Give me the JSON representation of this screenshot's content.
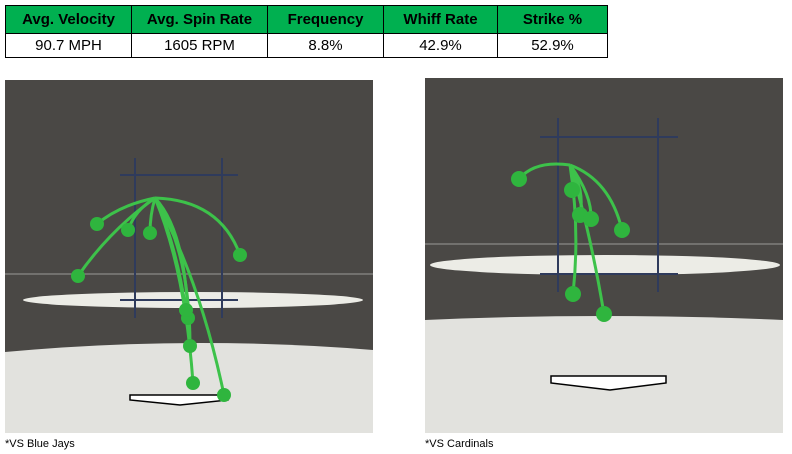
{
  "table": {
    "header": [
      "Avg. Velocity",
      "Avg. Spin Rate",
      "Frequency",
      "Whiff Rate",
      "Strike %"
    ],
    "rows": [
      [
        "90.7 MPH",
        "1605 RPM",
        "8.8%",
        "42.9%",
        "52.9%"
      ]
    ]
  },
  "panels": [
    {
      "caption": "*VS Blue Jays"
    },
    {
      "caption": "*VS Cardinals"
    }
  ]
}
